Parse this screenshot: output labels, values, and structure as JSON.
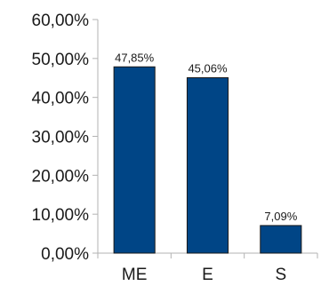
{
  "chart_data": {
    "type": "bar",
    "categories": [
      "ME",
      "E",
      "S"
    ],
    "values": [
      47.85,
      45.06,
      7.09
    ],
    "data_labels": [
      "47,85%",
      "45,06%",
      "7,09%"
    ],
    "ylim": [
      0,
      60
    ],
    "y_ticks": [
      0,
      10,
      20,
      30,
      40,
      50,
      60
    ],
    "y_tick_labels": [
      "0,00%",
      "10,00%",
      "20,00%",
      "30,00%",
      "40,00%",
      "50,00%",
      "60,00%"
    ],
    "title": "",
    "xlabel": "",
    "ylabel": "",
    "grid": false,
    "legend": "none",
    "bar_color": "#004586",
    "bar_edge_color": "#1a1a1a"
  }
}
